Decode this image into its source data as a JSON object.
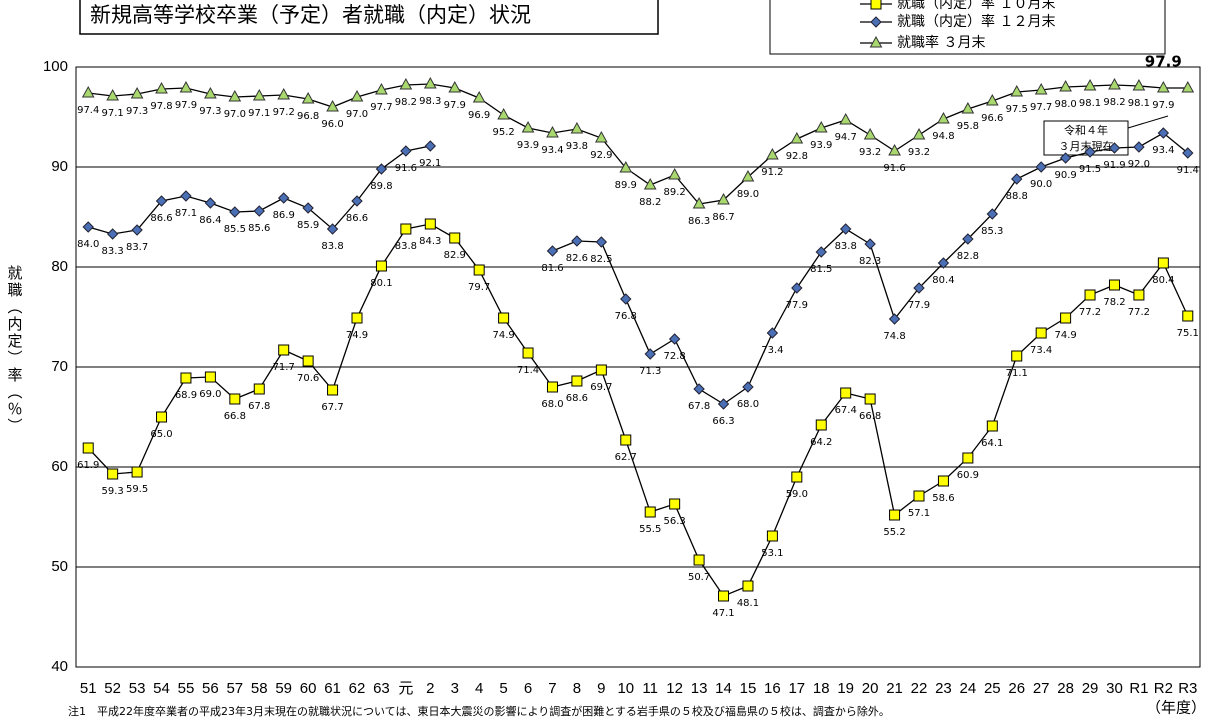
{
  "chart_data": {
    "type": "line",
    "title": "新規高等学校卒業（予定）者就職（内定）状況",
    "y_label": "就職（内定）率（％）",
    "x_label": "（年度）",
    "note": "注1　平成22年度卒業者の平成23年3月末現在の就職状況については、東日本大震災の影響により調査が困難とする岩手県の５校及び福島県の５校は、調査から除外。",
    "annotation": [
      "令和４年",
      "３月末現在"
    ],
    "categories": [
      "51",
      "52",
      "53",
      "54",
      "55",
      "56",
      "57",
      "58",
      "59",
      "60",
      "61",
      "62",
      "63",
      "元",
      "2",
      "3",
      "4",
      "5",
      "6",
      "7",
      "8",
      "9",
      "10",
      "11",
      "12",
      "13",
      "14",
      "15",
      "16",
      "17",
      "18",
      "19",
      "20",
      "21",
      "22",
      "23",
      "24",
      "25",
      "26",
      "27",
      "28",
      "29",
      "30",
      "R1",
      "R2",
      "R3"
    ],
    "ylim": [
      40,
      100
    ],
    "yticks": [
      40,
      50,
      60,
      70,
      80,
      90,
      100
    ],
    "grid": true,
    "series": [
      {
        "name": "就職（内定）率 １０月末",
        "color": "#ffff00",
        "marker": "square",
        "values": [
          61.9,
          59.3,
          59.5,
          65.0,
          68.9,
          69.0,
          66.8,
          67.8,
          71.7,
          70.6,
          67.7,
          74.9,
          80.1,
          83.8,
          84.3,
          82.9,
          79.7,
          74.9,
          71.4,
          68.0,
          68.6,
          69.7,
          62.7,
          55.5,
          56.3,
          50.7,
          47.1,
          48.1,
          53.1,
          59.0,
          64.2,
          67.4,
          66.8,
          55.2,
          57.1,
          58.6,
          60.9,
          64.1,
          71.1,
          73.4,
          74.9,
          77.2,
          78.2,
          77.2,
          80.4,
          75.1
        ],
        "value_labels": [
          "61.9",
          "59.3",
          "59.5",
          "65.0",
          "68.9",
          "69.0",
          "66.8",
          "67.8",
          "71.7",
          "70.6",
          "67.7",
          "74.9",
          "80.1",
          "83.8",
          "84.3",
          "82.9",
          "79.7",
          "74.9",
          "71.4",
          "68.0",
          "68.6",
          "69.7",
          "62.7",
          "55.5",
          "56.3",
          "50.7",
          "47.1",
          "48.1",
          "53.1",
          "59.0",
          "64.2",
          "67.4",
          "66.8",
          "55.2",
          "57.1",
          "58.6",
          "60.9",
          "64.1",
          "71.1",
          "73.4",
          "74.9",
          "77.2",
          "78.2",
          "77.2",
          "80.4",
          "75.1"
        ]
      },
      {
        "name": "就職（内定）率 １２月末",
        "color": "#4a6fb5",
        "marker": "diamond",
        "values": [
          84.0,
          83.3,
          83.7,
          86.6,
          87.1,
          86.4,
          85.5,
          85.6,
          86.9,
          85.9,
          83.8,
          86.6,
          89.8,
          91.6,
          92.1,
          null,
          null,
          null,
          null,
          81.6,
          82.6,
          82.5,
          76.8,
          71.3,
          72.8,
          67.8,
          66.3,
          68.0,
          73.4,
          77.9,
          81.5,
          83.8,
          82.3,
          74.8,
          77.9,
          80.4,
          82.8,
          85.3,
          88.8,
          90.0,
          90.9,
          91.5,
          91.9,
          92.0,
          93.4,
          91.4
        ],
        "value_labels": [
          "84.0",
          "83.3",
          "83.7",
          "86.6",
          "87.1",
          "86.4",
          "85.5",
          "85.6",
          "86.9",
          "85.9",
          "83.8",
          "86.6",
          "89.8",
          "91.6",
          "92.1",
          null,
          null,
          null,
          null,
          "81.6",
          "82.6",
          "82.5",
          "76.8",
          "71.3",
          "72.8",
          "67.8",
          "66.3",
          "68.0",
          "73.4",
          "77.9",
          "81.5",
          "83.8",
          "82.3",
          "74.8",
          "77.9",
          "80.4",
          "82.8",
          "85.3",
          "88.8",
          "90.0",
          "90.9",
          "91.5",
          "91.9",
          "92.0",
          "93.4",
          "91.4"
        ]
      },
      {
        "name": "就職率 ３月末",
        "color": "#a8d86e",
        "marker": "triangle",
        "values": [
          97.4,
          97.1,
          97.3,
          97.8,
          97.9,
          97.3,
          97.0,
          97.1,
          97.2,
          96.8,
          96.0,
          97.0,
          97.7,
          98.2,
          98.3,
          97.9,
          96.9,
          95.2,
          93.9,
          93.4,
          93.8,
          92.9,
          89.9,
          88.2,
          89.2,
          86.3,
          86.7,
          89.0,
          91.2,
          92.8,
          93.9,
          94.7,
          93.2,
          91.6,
          93.2,
          94.8,
          95.8,
          96.6,
          97.5,
          97.7,
          98.0,
          98.1,
          98.2,
          98.1,
          97.9,
          97.9
        ],
        "value_labels": [
          "97.4",
          "97.1",
          "97.3",
          "97.8",
          "97.9",
          "97.3",
          "97.0",
          "97.1",
          "97.2",
          "96.8",
          "96.0",
          "97.0",
          "97.7",
          "98.2",
          "98.3",
          "97.9",
          "96.9",
          "95.2",
          "93.9",
          "93.4",
          "93.8",
          "92.9",
          "89.9",
          "88.2",
          "89.2",
          "86.3",
          "86.7",
          "89.0",
          "91.2",
          "92.8",
          "93.9",
          "94.7",
          "93.2",
          "91.6",
          "93.2",
          "94.8",
          "95.8",
          "96.6",
          "97.5",
          "97.7",
          "98.0",
          "98.1",
          "98.2",
          "98.1",
          "97.9",
          "97.9"
        ]
      }
    ]
  }
}
